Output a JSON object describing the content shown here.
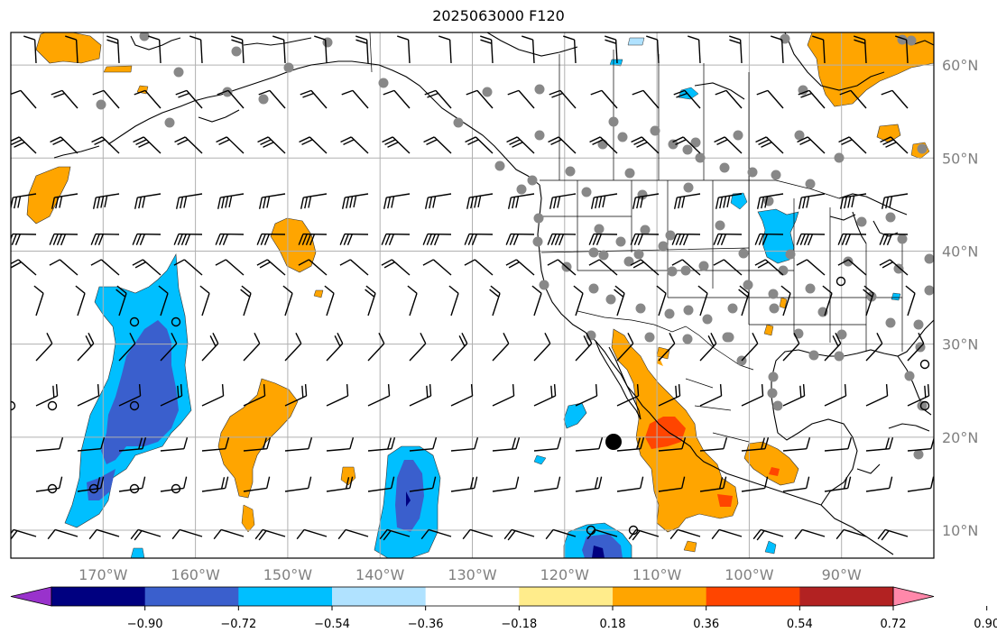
{
  "title": "2025063000 F120",
  "map": {
    "lon_ticks": [
      "170°W",
      "160°W",
      "150°W",
      "140°W",
      "130°W",
      "120°W",
      "110°W",
      "100°W",
      "90°W"
    ],
    "lat_ticks": [
      "60°N",
      "50°N",
      "40°N",
      "30°N",
      "20°N",
      "10°N"
    ],
    "extent": {
      "lon_min": -180,
      "lon_max": -80,
      "lat_min": 7,
      "lat_max": 63.5
    }
  },
  "colorbar": {
    "labels": [
      "−0.90",
      "−0.72",
      "−0.54",
      "−0.36",
      "−0.18",
      "0.18",
      "0.36",
      "0.54",
      "0.72",
      "0.90"
    ],
    "colors": [
      "#9932CC",
      "#000080",
      "#3A5FCD",
      "#00BFFF",
      "#B0E2FF",
      "#FFFFFF",
      "#FFEC8B",
      "#FFA500",
      "#FF4500",
      "#B22222",
      "#FF88AA"
    ]
  },
  "colors": {
    "orange": "#FFA500",
    "red": "#FF4500",
    "lightblue": "#00BFFF",
    "blue": "#3A5FCD",
    "navy": "#000080",
    "station_gray": "#888888"
  }
}
